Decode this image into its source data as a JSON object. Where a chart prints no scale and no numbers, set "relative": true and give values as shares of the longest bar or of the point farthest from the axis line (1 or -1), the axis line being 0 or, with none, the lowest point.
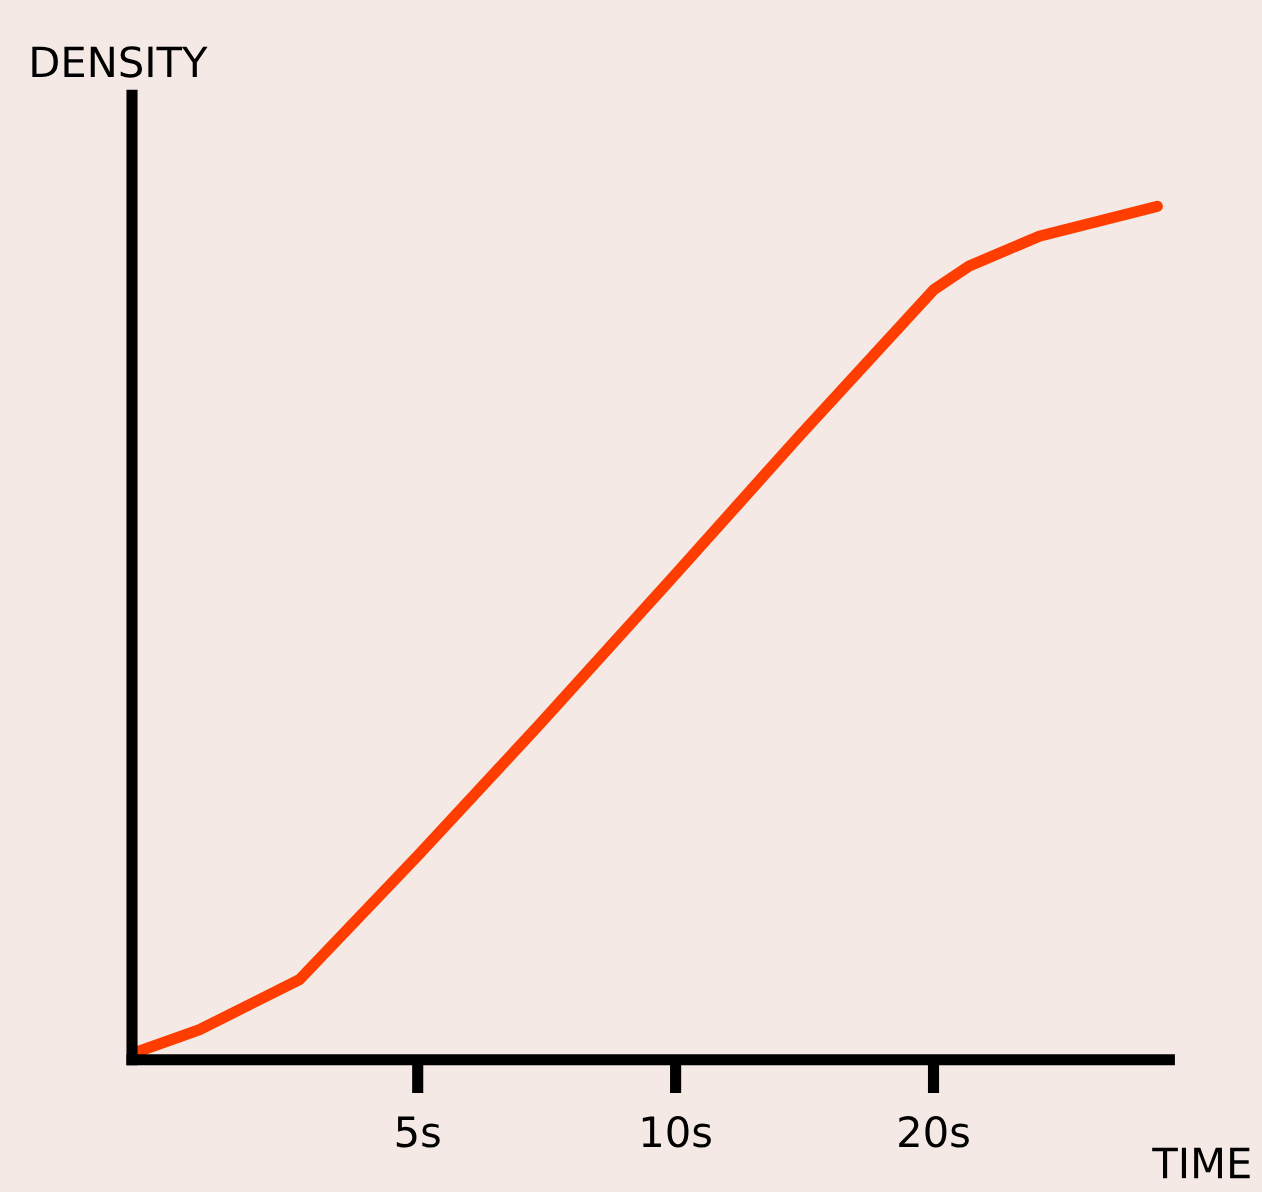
{
  "chart_data": {
    "type": "line",
    "xlabel": "TIME",
    "ylabel": "DENSITY",
    "relative": true,
    "log": "x",
    "xlim": [
      2.32,
      37.7
    ],
    "xticks": [
      {
        "value": 5,
        "label": "5s"
      },
      {
        "value": 10,
        "label": "10s"
      },
      {
        "value": 20,
        "label": "20s"
      }
    ],
    "tick_labels": "x",
    "grid": false,
    "legend": false,
    "marker": "none",
    "line_style": "solid",
    "series": [
      {
        "color": "#ff3d00",
        "x": [
          2.32,
          2.78,
          3.64,
          5,
          6.94,
          10,
          13.95,
          20,
          22.0,
          26.6,
          36.5
        ],
        "values": [
          0.007,
          0.035,
          0.094,
          0.239,
          0.393,
          0.569,
          0.731,
          0.902,
          0.93,
          0.965,
          1.0
        ]
      }
    ]
  }
}
